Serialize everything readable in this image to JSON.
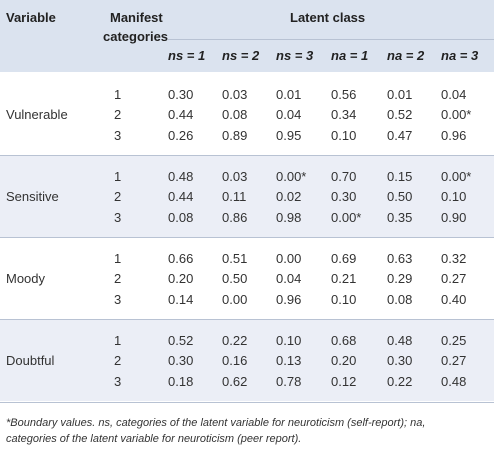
{
  "headers": {
    "variable": "Variable",
    "manifest_line1": "Manifest",
    "manifest_line2": "categories",
    "latent_class": "Latent class",
    "classes": [
      "ns = 1",
      "ns = 2",
      "ns = 3",
      "na = 1",
      "na = 2",
      "na = 3"
    ]
  },
  "groups": [
    {
      "variable": "Vulnerable",
      "rows": [
        {
          "category": "1",
          "values": [
            "0.30",
            "0.03",
            "0.01",
            "0.56",
            "0.01",
            "0.04"
          ]
        },
        {
          "category": "2",
          "values": [
            "0.44",
            "0.08",
            "0.04",
            "0.34",
            "0.52",
            "0.00*"
          ]
        },
        {
          "category": "3",
          "values": [
            "0.26",
            "0.89",
            "0.95",
            "0.10",
            "0.47",
            "0.96"
          ]
        }
      ]
    },
    {
      "variable": "Sensitive",
      "rows": [
        {
          "category": "1",
          "values": [
            "0.48",
            "0.03",
            "0.00*",
            "0.70",
            "0.15",
            "0.00*"
          ]
        },
        {
          "category": "2",
          "values": [
            "0.44",
            "0.11",
            "0.02",
            "0.30",
            "0.50",
            "0.10"
          ]
        },
        {
          "category": "3",
          "values": [
            "0.08",
            "0.86",
            "0.98",
            "0.00*",
            "0.35",
            "0.90"
          ]
        }
      ]
    },
    {
      "variable": "Moody",
      "rows": [
        {
          "category": "1",
          "values": [
            "0.66",
            "0.51",
            "0.00",
            "0.69",
            "0.63",
            "0.32"
          ]
        },
        {
          "category": "2",
          "values": [
            "0.20",
            "0.50",
            "0.04",
            "0.21",
            "0.29",
            "0.27"
          ]
        },
        {
          "category": "3",
          "values": [
            "0.14",
            "0.00",
            "0.96",
            "0.10",
            "0.08",
            "0.40"
          ]
        }
      ]
    },
    {
      "variable": "Doubtful",
      "rows": [
        {
          "category": "1",
          "values": [
            "0.52",
            "0.22",
            "0.10",
            "0.68",
            "0.48",
            "0.25"
          ]
        },
        {
          "category": "2",
          "values": [
            "0.30",
            "0.16",
            "0.13",
            "0.20",
            "0.30",
            "0.27"
          ]
        },
        {
          "category": "3",
          "values": [
            "0.18",
            "0.62",
            "0.78",
            "0.12",
            "0.22",
            "0.48"
          ]
        }
      ]
    }
  ],
  "footnote": {
    "line1": "*Boundary values. ns, categories of the latent variable for neuroticism (self-report); na,",
    "line2": "categories of the latent variable for neuroticism (peer report)."
  },
  "colors": {
    "header_bg": "#dbe3ef",
    "group_bg": "#ebeef6",
    "rule": "#b8c2d3"
  }
}
